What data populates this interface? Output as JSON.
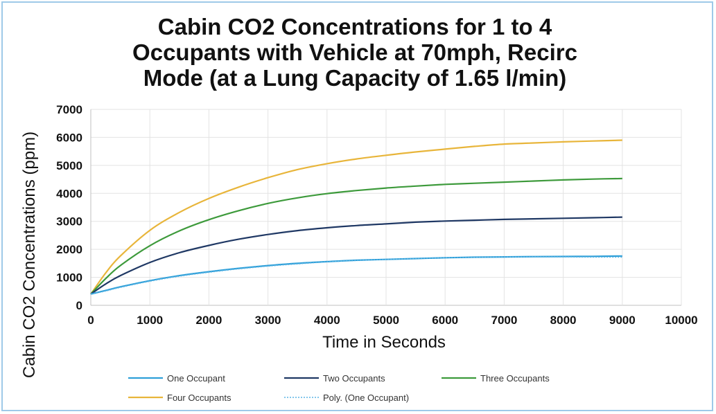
{
  "chart_data": {
    "type": "line",
    "title_lines": [
      "Cabin CO2 Concentrations for 1 to 4",
      "Occupants with Vehicle at 70mph, Recirc",
      "Mode  (at a Lung Capacity of 1.65 l/min)"
    ],
    "xlabel": "Time in Seconds",
    "ylabel": "Cabin CO2 Concentrations (ppm)",
    "xlim": [
      0,
      10000
    ],
    "ylim": [
      0,
      7000
    ],
    "x_ticks": [
      "0",
      "1000",
      "2000",
      "3000",
      "4000",
      "5000",
      "6000",
      "7000",
      "8000",
      "9000",
      "10000"
    ],
    "y_ticks": [
      "0",
      "1000",
      "2000",
      "3000",
      "4000",
      "5000",
      "6000",
      "7000"
    ],
    "grid": true,
    "legend_position": "bottom",
    "x": [
      0,
      250,
      500,
      1000,
      1500,
      2000,
      2500,
      3000,
      3500,
      4000,
      4500,
      5000,
      5500,
      6000,
      6500,
      7000,
      7500,
      8000,
      8500,
      9000
    ],
    "series": [
      {
        "name": "One Occupant",
        "color": "#2e9fd8",
        "style": "solid",
        "values": [
          400,
          530,
          660,
          880,
          1060,
          1200,
          1320,
          1420,
          1500,
          1560,
          1610,
          1640,
          1670,
          1700,
          1720,
          1730,
          1740,
          1745,
          1750,
          1760
        ]
      },
      {
        "name": "Two Occupants",
        "color": "#1f3864",
        "style": "solid",
        "values": [
          400,
          760,
          1060,
          1530,
          1880,
          2140,
          2360,
          2530,
          2670,
          2770,
          2850,
          2910,
          2970,
          3010,
          3040,
          3070,
          3090,
          3110,
          3130,
          3150
        ]
      },
      {
        "name": "Three Occupants",
        "color": "#3d9a3b",
        "style": "solid",
        "values": [
          400,
          950,
          1420,
          2130,
          2660,
          3060,
          3380,
          3640,
          3840,
          3990,
          4100,
          4190,
          4260,
          4320,
          4360,
          4400,
          4440,
          4480,
          4510,
          4530
        ]
      },
      {
        "name": "Four Occupants",
        "color": "#e8b53a",
        "style": "solid",
        "values": [
          400,
          1150,
          1760,
          2680,
          3320,
          3820,
          4220,
          4560,
          4850,
          5060,
          5230,
          5360,
          5480,
          5580,
          5680,
          5760,
          5800,
          5840,
          5870,
          5900
        ]
      },
      {
        "name": "Poly. (One Occupant)",
        "color": "#5ab4e5",
        "style": "dotted",
        "values": [
          400,
          510,
          640,
          860,
          1040,
          1180,
          1300,
          1400,
          1480,
          1550,
          1600,
          1640,
          1670,
          1700,
          1715,
          1725,
          1730,
          1730,
          1725,
          1720
        ]
      }
    ]
  }
}
